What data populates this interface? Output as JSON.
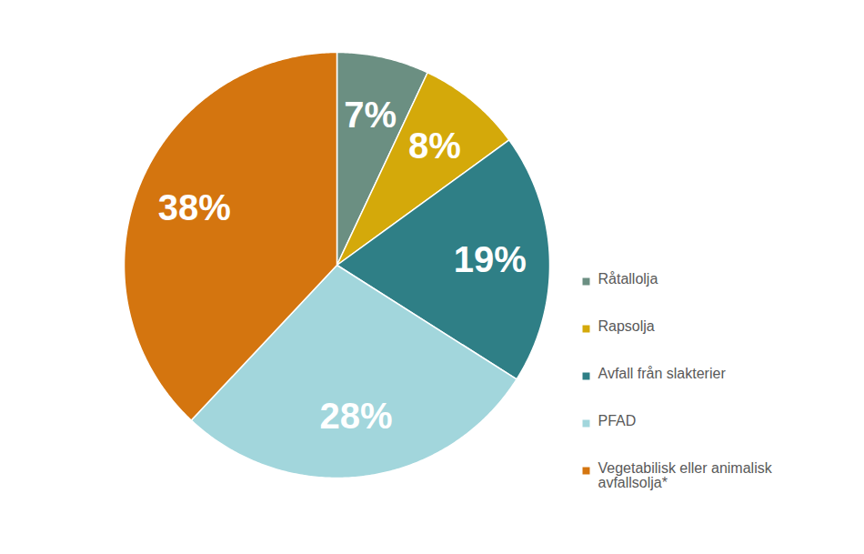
{
  "chart_data": {
    "type": "pie",
    "categories": [
      "Råtallolja",
      "Rapsolja",
      "Avfall från slakterier",
      "PFAD",
      "Vegetabilisk eller animalisk avfallsolja*"
    ],
    "values": [
      7,
      8,
      19,
      28,
      38
    ],
    "value_labels": [
      "7%",
      "8%",
      "19%",
      "28%",
      "38%"
    ],
    "colors": [
      "#6b8f82",
      "#d4a90a",
      "#2f7f86",
      "#a2d6dc",
      "#d4750f"
    ],
    "data_labels": true,
    "legend": "right"
  }
}
